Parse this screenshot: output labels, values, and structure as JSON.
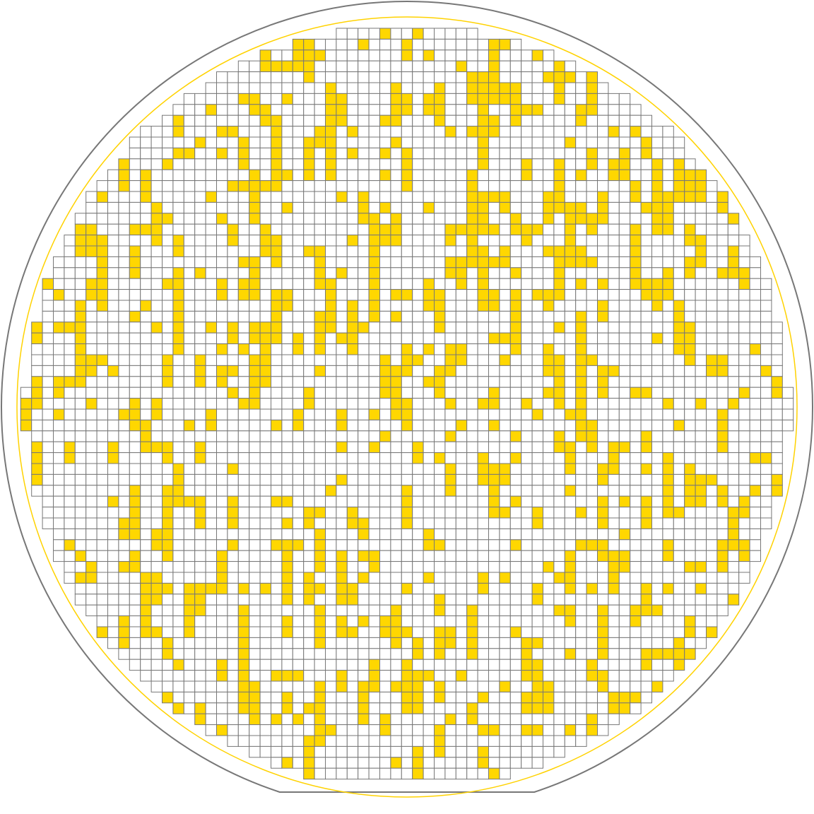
{
  "wafer": {
    "outline_color": "#777777",
    "edge_exclusion_color": "#ffd200",
    "die_fill_pass": "#ffffff",
    "die_fill_fail": "#ffd700",
    "die_stroke": "#777777",
    "flat": "bottom"
  },
  "grid": {
    "columns": 71,
    "rows": 71,
    "fail_fraction": 0.22
  }
}
